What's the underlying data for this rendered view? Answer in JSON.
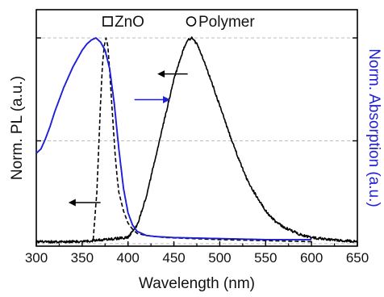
{
  "chart_data": {
    "type": "line",
    "xlabel": "Wavelength (nm)",
    "ylabel_left": "Norm. PL (a.u.)",
    "ylabel_right": "Norm. Absorption (a.u.)",
    "xlim": [
      300,
      650
    ],
    "ylim": [
      0,
      1.05
    ],
    "x_ticks": [
      300,
      350,
      400,
      450,
      500,
      550,
      600,
      650
    ],
    "x_tick_labels": [
      "300",
      "350",
      "400",
      "450",
      "500",
      "550",
      "600",
      "650"
    ],
    "gridlines_y": [
      0,
      0.5,
      1.0
    ],
    "grid": "horizontal dashed at 0, 0.5, 1",
    "legend": [
      {
        "label": "ZnO",
        "marker": "square"
      },
      {
        "label": "Polymer",
        "marker": "circle"
      }
    ],
    "series": [
      {
        "name": "ZnO",
        "axis": "left",
        "style": "dashed",
        "color": "#000000",
        "x": [
          362,
          366,
          370,
          372,
          374,
          376,
          378,
          380,
          382,
          384,
          386,
          388,
          390,
          395,
          400,
          405,
          410,
          420,
          440,
          470,
          500,
          550,
          600
        ],
        "y": [
          0.02,
          0.25,
          0.68,
          0.86,
          0.96,
          1.0,
          0.96,
          0.84,
          0.7,
          0.56,
          0.43,
          0.33,
          0.25,
          0.16,
          0.1,
          0.07,
          0.05,
          0.04,
          0.03,
          0.025,
          0.02,
          0.015,
          0.01
        ]
      },
      {
        "name": "Polymer PL",
        "axis": "left",
        "style": "solid",
        "color": "#000000",
        "x": [
          300,
          350,
          400,
          410,
          420,
          430,
          440,
          450,
          460,
          465,
          470,
          475,
          480,
          490,
          500,
          510,
          520,
          530,
          540,
          550,
          560,
          570,
          580,
          590,
          600,
          620,
          650
        ],
        "y": [
          0.01,
          0.01,
          0.03,
          0.09,
          0.23,
          0.42,
          0.61,
          0.8,
          0.94,
          0.99,
          1.0,
          0.97,
          0.92,
          0.8,
          0.67,
          0.54,
          0.42,
          0.31,
          0.23,
          0.16,
          0.11,
          0.08,
          0.06,
          0.04,
          0.03,
          0.02,
          0.01
        ]
      },
      {
        "name": "Polymer absorption",
        "axis": "right",
        "style": "solid",
        "color": "#1f1fd6",
        "x": [
          300,
          305,
          310,
          315,
          320,
          330,
          340,
          350,
          355,
          360,
          365,
          370,
          375,
          380,
          385,
          390,
          395,
          400,
          405,
          410,
          420,
          430,
          450,
          500,
          550,
          600
        ],
        "y": [
          0.44,
          0.46,
          0.51,
          0.57,
          0.64,
          0.76,
          0.86,
          0.94,
          0.97,
          0.99,
          1.0,
          0.98,
          0.94,
          0.85,
          0.68,
          0.46,
          0.27,
          0.15,
          0.09,
          0.06,
          0.04,
          0.035,
          0.03,
          0.025,
          0.02,
          0.02
        ]
      }
    ],
    "arrows": [
      {
        "target": "left",
        "x_from": 465,
        "x_to": 432,
        "y": 0.825,
        "color": "#000000"
      },
      {
        "target": "right",
        "x_from": 407,
        "x_to": 446,
        "y": 0.7,
        "color": "#1f1fd6"
      },
      {
        "target": "left",
        "x_from": 370,
        "x_to": 335,
        "y": 0.2,
        "color": "#000000"
      }
    ]
  }
}
